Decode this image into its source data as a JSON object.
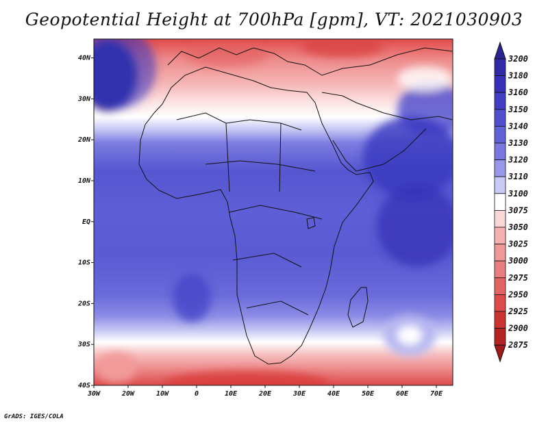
{
  "title": "Geopotential Height at 700hPa [gpm], VT: 2021030903",
  "footer": "GrADS: IGES/COLA",
  "map": {
    "lon_range": [
      -30,
      75
    ],
    "lat_range": [
      -40,
      45
    ],
    "x_ticks": [
      "30W",
      "20W",
      "10W",
      "0",
      "10E",
      "20E",
      "30E",
      "40E",
      "50E",
      "60E",
      "70E"
    ],
    "y_ticks": [
      "40S",
      "30S",
      "20S",
      "10S",
      "EQ",
      "10N",
      "20N",
      "30N",
      "40N"
    ]
  },
  "colorbar": {
    "levels": [
      "3200",
      "3180",
      "3160",
      "3150",
      "3140",
      "3130",
      "3120",
      "3110",
      "3100",
      "3075",
      "3050",
      "3025",
      "3000",
      "2975",
      "2950",
      "2925",
      "2900",
      "2875"
    ],
    "colors": [
      "#2a2495",
      "#2f2ba7",
      "#3631b8",
      "#423fc5",
      "#5151cf",
      "#6262d8",
      "#7878e0",
      "#9898ea",
      "#c9c9f5",
      "#ffffff",
      "#fbd6d6",
      "#f6b2b2",
      "#f09898",
      "#ea7e7e",
      "#e46464",
      "#dc4a4a",
      "#cc3333",
      "#b52424",
      "#a01a1a"
    ]
  }
}
